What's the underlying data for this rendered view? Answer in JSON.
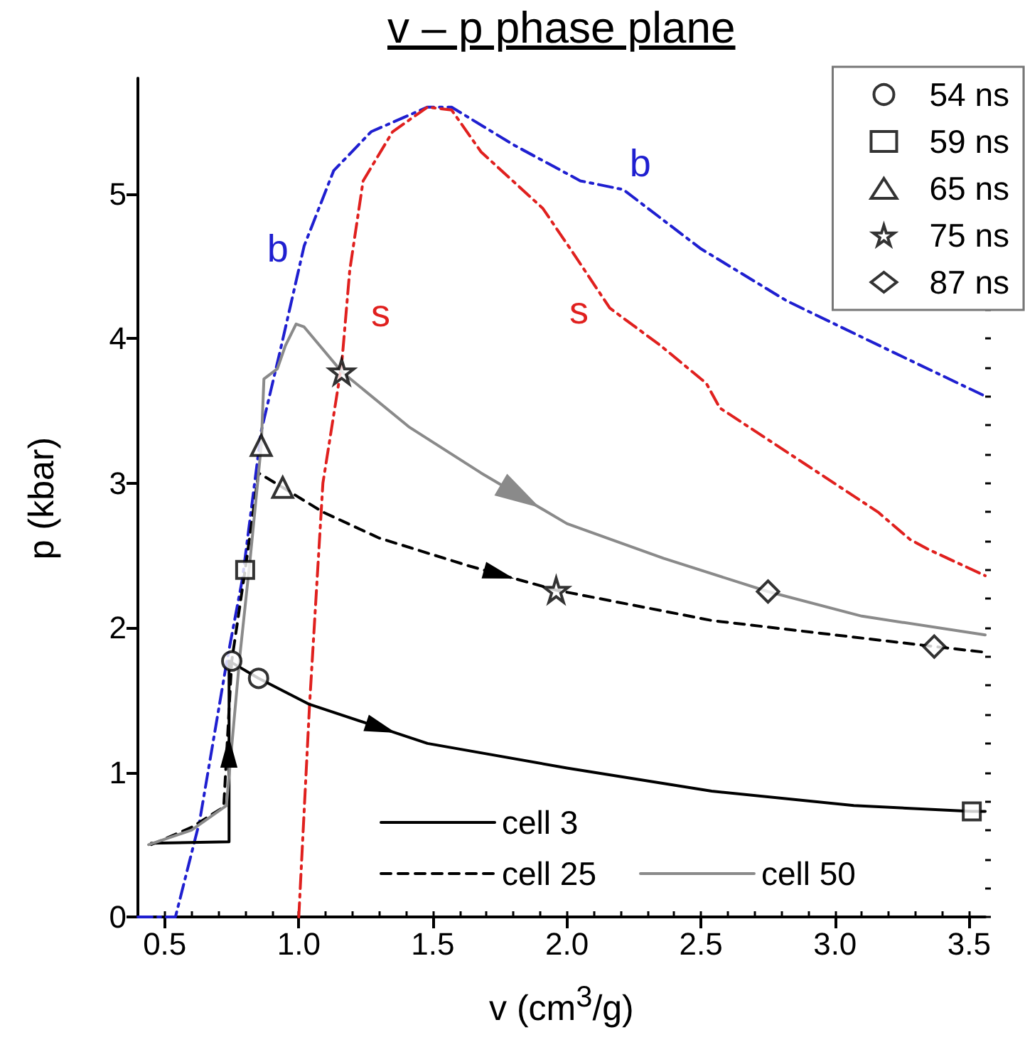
{
  "chart_data": {
    "type": "line",
    "title": "v – p phase plane",
    "xlabel": "v (cm$^{3}$/g)",
    "ylabel": "p (kbar)",
    "xlim": [
      0.4,
      3.56
    ],
    "xticks": [
      0.5,
      {
        "value": 1,
        "label": "1.0"
      },
      1.5,
      {
        "value": 2,
        "label": "2.0"
      },
      2.5,
      {
        "value": 3,
        "label": "3.0"
      },
      3.5
    ],
    "ylim": [
      0,
      5.8
    ],
    "yticks": [
      0,
      1,
      2,
      3,
      4,
      5
    ],
    "grid": false,
    "legend": "top right",
    "series": [
      {
        "name": "b",
        "color": "#1f1fd0",
        "line_style": "dashdot",
        "marker": "none",
        "x": [
          0.4,
          0.54,
          0.63,
          0.73,
          0.79,
          0.86,
          0.93,
          1.02,
          1.13,
          1.27,
          1.48,
          1.57,
          1.8,
          2.05,
          2.21,
          2.5,
          2.82,
          3.2,
          3.55
        ],
        "values": [
          0,
          0,
          0.66,
          1.75,
          2.34,
          3.36,
          3.91,
          4.64,
          5.16,
          5.43,
          5.6,
          5.6,
          5.34,
          5.09,
          5.03,
          4.62,
          4.26,
          3.92,
          3.61
        ]
      },
      {
        "name": "s",
        "color": "#e0201e",
        "line_style": "dashdot",
        "marker": "none",
        "x": [
          1.0,
          1.04,
          1.09,
          1.16,
          1.19,
          1.24,
          1.35,
          1.48,
          1.57,
          1.68,
          1.91,
          2.02,
          2.16,
          2.35,
          2.52,
          2.57,
          2.89,
          3.16,
          3.28,
          3.35,
          3.56
        ],
        "values": [
          0,
          1.46,
          3.0,
          3.82,
          4.47,
          5.09,
          5.43,
          5.6,
          5.58,
          5.29,
          4.9,
          4.6,
          4.21,
          3.95,
          3.69,
          3.52,
          3.13,
          2.8,
          2.61,
          2.54,
          2.36
        ]
      },
      {
        "name": "cell 3",
        "color": "#000000",
        "line_style": "solid",
        "marker": "none",
        "x": [
          0.45,
          0.74,
          0.74,
          0.85,
          1.04,
          1.48,
          2.0,
          2.54,
          3.07,
          3.51,
          3.56
        ],
        "values": [
          0.51,
          0.52,
          1.77,
          1.65,
          1.47,
          1.2,
          1.03,
          0.87,
          0.77,
          0.73,
          0.73
        ]
      },
      {
        "name": "cell 25",
        "color": "#000000",
        "line_style": "dashed",
        "marker": "none",
        "x": [
          0.45,
          0.6,
          0.72,
          0.75,
          0.8,
          0.85,
          0.94,
          1.09,
          1.3,
          1.63,
          1.96,
          2.54,
          3.0,
          3.37,
          3.56
        ],
        "values": [
          0.5,
          0.62,
          0.76,
          1.77,
          2.4,
          3.07,
          2.97,
          2.8,
          2.62,
          2.43,
          2.26,
          2.05,
          1.95,
          1.87,
          1.83
        ]
      },
      {
        "name": "cell 50",
        "color": "#8a8a8a",
        "line_style": "solid",
        "marker": "none",
        "x": [
          0.44,
          0.6,
          0.73,
          0.78,
          0.82,
          0.86,
          0.87,
          0.92,
          0.95,
          0.99,
          1.02,
          1.16,
          1.41,
          1.68,
          2.0,
          2.36,
          2.75,
          3.1,
          3.56
        ],
        "values": [
          0.5,
          0.6,
          0.77,
          1.8,
          2.5,
          3.26,
          3.72,
          3.79,
          3.95,
          4.1,
          4.08,
          3.77,
          3.39,
          3.07,
          2.72,
          2.48,
          2.25,
          2.08,
          1.95
        ]
      },
      {
        "name": "54 ns",
        "type": "scatter",
        "color": "#000000",
        "marker": "circle",
        "x": [
          0.75,
          0.85
        ],
        "values": [
          1.77,
          1.65
        ]
      },
      {
        "name": "59 ns",
        "type": "scatter",
        "color": "#000000",
        "marker": "square",
        "x": [
          0.8,
          3.51
        ],
        "values": [
          2.4,
          0.73
        ]
      },
      {
        "name": "65 ns",
        "type": "scatter",
        "color": "#000000",
        "marker": "triangle",
        "x": [
          0.86,
          0.94
        ],
        "values": [
          3.26,
          2.97
        ]
      },
      {
        "name": "75 ns",
        "type": "scatter",
        "color": "#000000",
        "marker": "star",
        "x": [
          1.16,
          1.96
        ],
        "values": [
          3.77,
          2.26
        ]
      },
      {
        "name": "87 ns",
        "type": "scatter",
        "color": "#000000",
        "marker": "diamond",
        "x": [
          2.75,
          3.37
        ],
        "values": [
          2.25,
          1.87
        ]
      }
    ]
  }
}
